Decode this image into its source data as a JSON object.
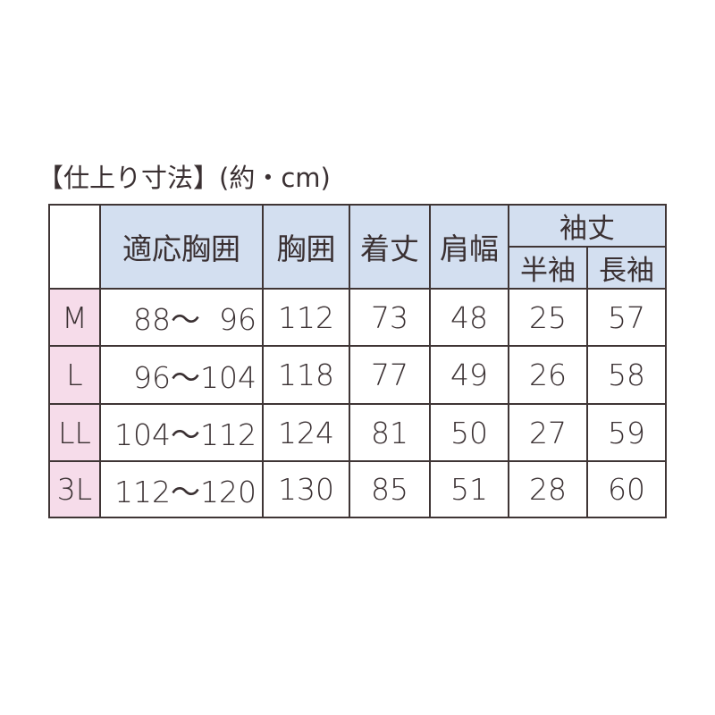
{
  "title": "【仕上り寸法】(約・cm)",
  "colors": {
    "header_bg": "#d3dff0",
    "size_bg": "#f6dcea",
    "border": "#3f3535",
    "text": "#3a3032"
  },
  "headers": {
    "chest_fit": "適応胸囲",
    "chest": "胸囲",
    "length": "着丈",
    "shoulder": "肩幅",
    "sleeve": "袖丈",
    "short_sleeve": "半袖",
    "long_sleeve": "長袖"
  },
  "rows": [
    {
      "size": "M",
      "chest_fit": "88～  96",
      "chest": "112",
      "length": "73",
      "shoulder": "48",
      "short_sleeve": "25",
      "long_sleeve": "57"
    },
    {
      "size": "L",
      "chest_fit": "96～104",
      "chest": "118",
      "length": "77",
      "shoulder": "49",
      "short_sleeve": "26",
      "long_sleeve": "58"
    },
    {
      "size": "LL",
      "chest_fit": "104～112",
      "chest": "124",
      "length": "81",
      "shoulder": "50",
      "short_sleeve": "27",
      "long_sleeve": "59"
    },
    {
      "size": "3L",
      "chest_fit": "112～120",
      "chest": "130",
      "length": "85",
      "shoulder": "51",
      "short_sleeve": "28",
      "long_sleeve": "60"
    }
  ]
}
